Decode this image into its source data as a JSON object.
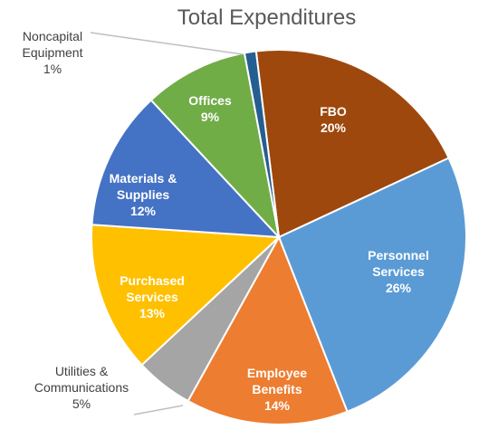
{
  "chart_data": {
    "type": "pie",
    "title": "Total Expenditures",
    "categories": [
      "FBO",
      "Personnel Services",
      "Employee Benefits",
      "Utilities & Communications",
      "Purchased Services",
      "Materials & Supplies",
      "Offices",
      "Noncapital Equipment"
    ],
    "values": [
      20,
      26,
      14,
      5,
      13,
      12,
      9,
      1
    ],
    "value_labels": [
      "20%",
      "26%",
      "14%",
      "5%",
      "13%",
      "12%",
      "9%",
      "1%"
    ],
    "colors": [
      "#9e480e",
      "#5b9bd5",
      "#ed7d31",
      "#a5a5a5",
      "#ffc000",
      "#4472c4",
      "#70ad47",
      "#255e91"
    ]
  }
}
